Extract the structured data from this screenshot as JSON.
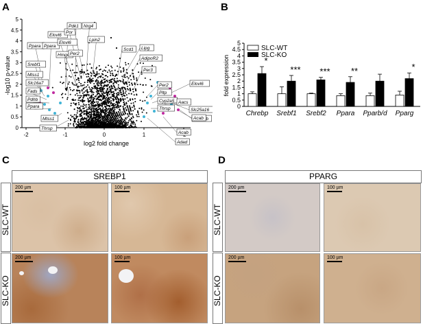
{
  "panels": {
    "a": "A",
    "b": "B",
    "c": "C",
    "d": "D"
  },
  "volcano": {
    "ylabel": "-log10 p-value",
    "xlabel": "log2 fold change",
    "yticks": [
      "0",
      "0.5",
      "1",
      "1.5",
      "2",
      "2.5",
      "3",
      "3.5",
      "4",
      "4.5",
      "5"
    ],
    "xticks": [
      "-2",
      "-1",
      "0",
      "1",
      "-2"
    ],
    "left_labels": [
      "Elovl6",
      "Por",
      "Pdk1",
      "Nrg4",
      "Ppara",
      "Ppara",
      "Elovl6",
      "Hmgcr",
      "Per2",
      "Lpin2",
      "Srebf1",
      "Mtss1",
      "Slc16a7",
      "Fads",
      "Pdhb",
      "Ppara",
      "Mtss1",
      "Thrsp"
    ],
    "right_labels": [
      "Scd1",
      "Lipg",
      "AdipoR2",
      "Per3",
      "Per2",
      "Pltp",
      "Cyp2a5",
      "Thrsp",
      "Elovl6",
      "Slc25a16",
      "Aacs",
      "Acaa1b",
      "Acab",
      "Acab",
      "Adad"
    ]
  },
  "chart_data": {
    "type": "bar",
    "categories": [
      "Chrebp",
      "Srebf1",
      "Srebf2",
      "Ppara",
      "Pparb/d",
      "Pparg"
    ],
    "series": [
      {
        "name": "SLC-WT",
        "values": [
          1.0,
          1.0,
          1.0,
          0.85,
          0.85,
          0.9
        ],
        "errors": [
          0.15,
          0.55,
          0.05,
          0.15,
          0.2,
          0.3
        ],
        "color": "#ffffff"
      },
      {
        "name": "SLC-KO",
        "values": [
          2.6,
          2.0,
          2.1,
          1.9,
          2.0,
          2.2
        ],
        "errors": [
          0.55,
          0.45,
          0.2,
          0.45,
          0.55,
          0.45
        ],
        "color": "#000000"
      }
    ],
    "significance": [
      "*",
      "***",
      "***",
      "**",
      "",
      "*"
    ],
    "ylabel": "fold expression",
    "ylim": [
      0,
      5
    ],
    "yticks": [
      "0",
      "0.5",
      "1",
      "1.5",
      "2",
      "2.5",
      "3",
      "3.5",
      "4",
      "4.5",
      "5"
    ],
    "legend_placement": "top-left"
  },
  "histology": {
    "c_title": "SREBP1",
    "d_title": "PPARG",
    "row_wt": "SLC-WT",
    "row_ko": "SLC-KO",
    "scale_200": "200 µm",
    "scale_100": "100 µm"
  }
}
